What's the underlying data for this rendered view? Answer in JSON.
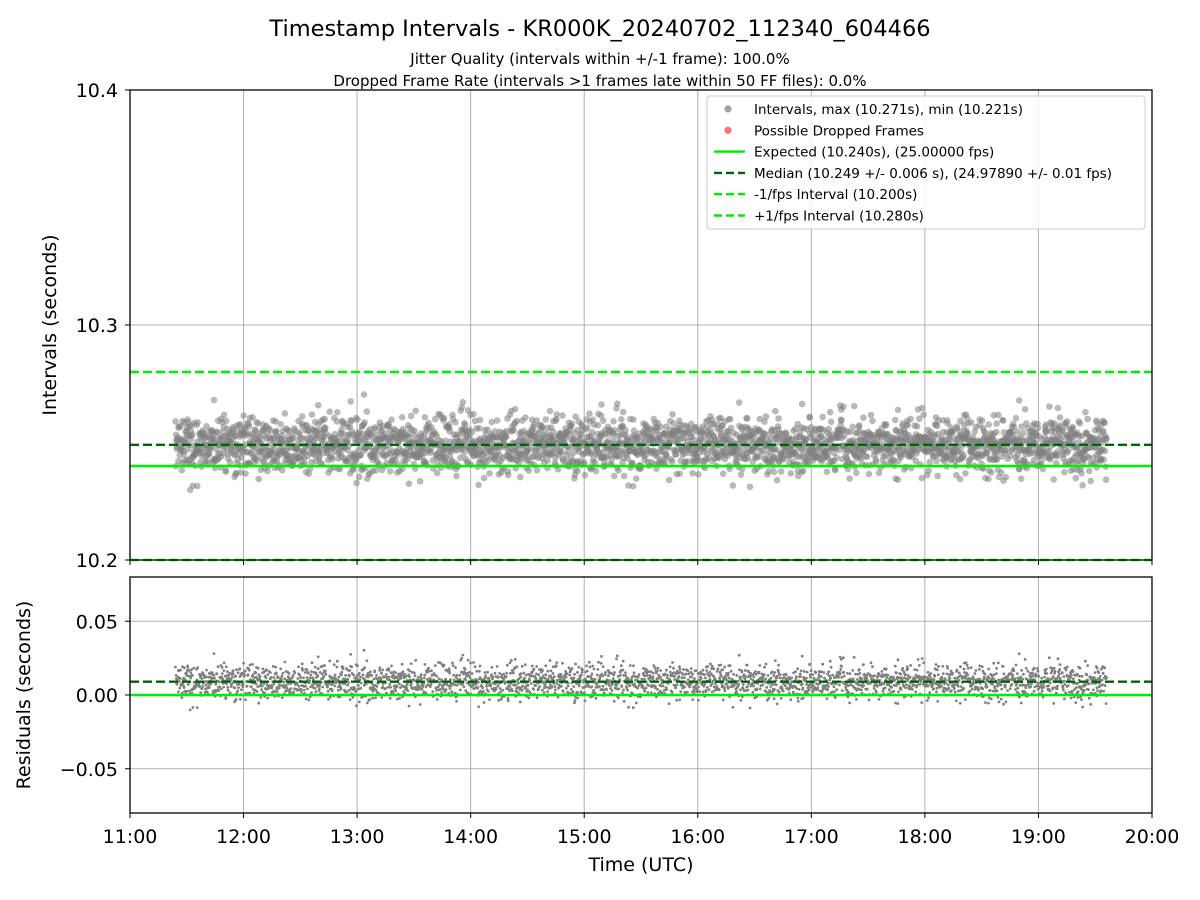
{
  "title": "Timestamp Intervals - KR000K_20240702_112340_604466",
  "subtitle_lines": [
    "Jitter Quality (intervals within +/-1 frame): 100.0%",
    "Dropped Frame Rate (intervals >1 frames late within 50 FF files): 0.0%"
  ],
  "colors": {
    "points": "#808080",
    "dropped": "#ff4040",
    "expected": "#00ee00",
    "median": "#006400",
    "interval": "#00ee00",
    "grid": "#b0b0b0"
  },
  "chart_data": [
    {
      "type": "scatter",
      "panel": "intervals",
      "ylabel": "Intervals (seconds)",
      "ylim": [
        10.2,
        10.4
      ],
      "xlim": [
        "11:00",
        "20:00"
      ],
      "yticks": [
        "10.2",
        "10.3",
        "10.4"
      ],
      "grid": true,
      "legend_position": "top-right",
      "point_time_range": [
        "11:24",
        "19:36"
      ],
      "approx_point_count": 2900,
      "series": [
        {
          "name": "Intervals, max (10.271s), min (10.221s)",
          "kind": "scatter",
          "color": "#808080",
          "center": 10.249,
          "spread": 0.006,
          "max": 10.271,
          "min": 10.221
        },
        {
          "name": "Possible Dropped Frames",
          "kind": "scatter",
          "color": "#ff4040",
          "count": 0
        },
        {
          "name": "Expected (10.240s), (25.00000 fps)",
          "kind": "hline",
          "value": 10.24,
          "style": "solid",
          "color": "#00ee00"
        },
        {
          "name": "Median (10.249 +/- 0.006 s), (24.97890 +/- 0.01 fps)",
          "kind": "hline",
          "value": 10.249,
          "style": "dashed",
          "color": "#006400"
        },
        {
          "name": "-1/fps Interval (10.200s)",
          "kind": "hline",
          "value": 10.2,
          "style": "dashed",
          "color": "#00ee00"
        },
        {
          "name": "+1/fps Interval (10.280s)",
          "kind": "hline",
          "value": 10.28,
          "style": "dashed",
          "color": "#00ee00"
        }
      ]
    },
    {
      "type": "scatter",
      "panel": "residuals",
      "ylabel": "Residuals (seconds)",
      "xlabel": "Time (UTC)",
      "ylim": [
        -0.08,
        0.08
      ],
      "yticks": [
        "−0.05",
        "0.00",
        "0.05"
      ],
      "xticks": [
        "11:00",
        "12:00",
        "13:00",
        "14:00",
        "15:00",
        "16:00",
        "17:00",
        "18:00",
        "19:00",
        "20:00"
      ],
      "grid": true,
      "series": [
        {
          "kind": "scatter",
          "color": "#808080",
          "center": 0.009,
          "spread": 0.006,
          "max": 0.031,
          "min": -0.019
        },
        {
          "kind": "hline",
          "value": 0.009,
          "style": "dashed",
          "color": "#006400"
        },
        {
          "kind": "hline",
          "value": 0.0,
          "style": "solid",
          "color": "#00ee00"
        }
      ]
    }
  ]
}
